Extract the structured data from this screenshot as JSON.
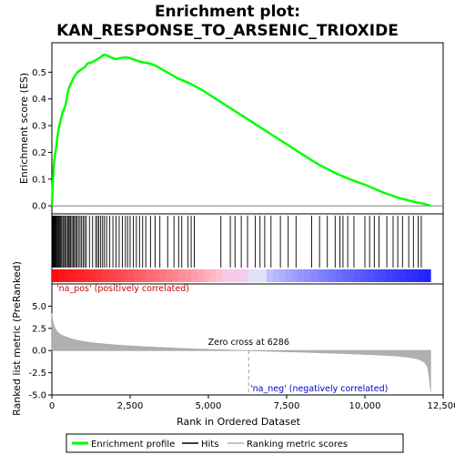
{
  "title_line1": "Enrichment plot:",
  "title_line2": "KAN_RESPONSE_TO_ARSENIC_TRIOXIDE",
  "chart_data": {
    "type": "line",
    "x_label": "Rank in Ordered Dataset",
    "x_range": [
      0,
      12500
    ],
    "x_ticks": [
      0,
      2500,
      5000,
      7500,
      10000,
      12500
    ],
    "x_tick_labels": [
      "0",
      "2,500",
      "5,000",
      "7,500",
      "10,000",
      "12,500"
    ],
    "n_genes": 12100,
    "top_panel": {
      "ylabel": "Enrichment score (ES)",
      "ylim": [
        -0.03,
        0.61
      ],
      "y_ticks": [
        0.0,
        0.1,
        0.2,
        0.3,
        0.4,
        0.5
      ],
      "y_tick_labels": [
        "0.0",
        "0.1",
        "0.2",
        "0.3",
        "0.4",
        "0.5"
      ],
      "series": [
        {
          "name": "Enrichment profile",
          "color": "#00ff00",
          "x": [
            0,
            30,
            60,
            100,
            140,
            180,
            220,
            260,
            300,
            340,
            380,
            420,
            460,
            500,
            540,
            580,
            620,
            660,
            700,
            760,
            820,
            880,
            940,
            1000,
            1060,
            1120,
            1180,
            1250,
            1320,
            1400,
            1470,
            1540,
            1600,
            1660,
            1720,
            1800,
            1900,
            2000,
            2100,
            2200,
            2300,
            2400,
            2500,
            2600,
            2700,
            2800,
            2900,
            3000,
            3100,
            3200,
            3300,
            3450,
            3600,
            3750,
            3900,
            4000,
            4100,
            4200,
            4300,
            4400,
            4500,
            4600,
            4800,
            5000,
            5200,
            5400,
            5600,
            5800,
            6000,
            6200,
            6400,
            6600,
            6800,
            7000,
            7200,
            7400,
            7600,
            7800,
            8000,
            8200,
            8400,
            8600,
            8800,
            9000,
            9200,
            9400,
            9600,
            9800,
            10000,
            10100,
            10200,
            10300,
            10400,
            10500,
            10600,
            10700,
            10800,
            10900,
            11000,
            11100,
            11200,
            11300,
            11400,
            11500,
            11600,
            11700,
            11800,
            11900,
            12000,
            12100
          ],
          "y": [
            0.0,
            0.08,
            0.15,
            0.19,
            0.22,
            0.26,
            0.29,
            0.31,
            0.33,
            0.35,
            0.36,
            0.37,
            0.39,
            0.42,
            0.44,
            0.45,
            0.46,
            0.47,
            0.48,
            0.49,
            0.5,
            0.505,
            0.51,
            0.515,
            0.52,
            0.53,
            0.535,
            0.535,
            0.54,
            0.545,
            0.55,
            0.555,
            0.56,
            0.565,
            0.565,
            0.56,
            0.555,
            0.55,
            0.55,
            0.553,
            0.555,
            0.555,
            0.552,
            0.548,
            0.544,
            0.54,
            0.537,
            0.535,
            0.533,
            0.53,
            0.525,
            0.515,
            0.505,
            0.495,
            0.485,
            0.478,
            0.473,
            0.468,
            0.463,
            0.458,
            0.452,
            0.446,
            0.433,
            0.418,
            0.403,
            0.388,
            0.373,
            0.358,
            0.343,
            0.328,
            0.313,
            0.298,
            0.283,
            0.268,
            0.253,
            0.238,
            0.223,
            0.208,
            0.193,
            0.178,
            0.163,
            0.15,
            0.138,
            0.126,
            0.115,
            0.105,
            0.096,
            0.087,
            0.079,
            0.074,
            0.069,
            0.064,
            0.059,
            0.054,
            0.049,
            0.045,
            0.041,
            0.037,
            0.033,
            0.029,
            0.026,
            0.023,
            0.02,
            0.017,
            0.014,
            0.012,
            0.01,
            0.007,
            0.004,
            0.0
          ]
        }
      ]
    },
    "hits_panel": {
      "hit_positions": [
        5,
        15,
        30,
        45,
        70,
        90,
        110,
        130,
        160,
        190,
        220,
        250,
        280,
        310,
        350,
        380,
        420,
        460,
        500,
        530,
        560,
        600,
        640,
        680,
        720,
        760,
        800,
        850,
        900,
        950,
        1000,
        1050,
        1100,
        1200,
        1300,
        1400,
        1450,
        1500,
        1560,
        1620,
        1680,
        1750,
        1850,
        1950,
        2050,
        2150,
        2250,
        2350,
        2420,
        2500,
        2600,
        2700,
        2800,
        2900,
        3000,
        3150,
        3300,
        3450,
        3700,
        3900,
        4050,
        4150,
        4350,
        4450,
        4550,
        5400,
        5700,
        5850,
        6050,
        6250,
        6500,
        6650,
        6800,
        7000,
        7300,
        7550,
        7800,
        8300,
        8550,
        8800,
        9050,
        9200,
        9300,
        9450,
        9650,
        10000,
        10150,
        10300,
        10450,
        10700,
        10900,
        11050,
        11200,
        11400,
        11550,
        11700,
        11800
      ],
      "rank_bar_color_positive": "#ff0000",
      "rank_bar_color_negative": "#0000ff"
    },
    "bottom_panel": {
      "ylabel": "Ranked list metric (PreRanked)",
      "ylim": [
        -5.0,
        7.5
      ],
      "y_ticks": [
        -5.0,
        -2.5,
        0.0,
        2.5,
        5.0
      ],
      "y_tick_labels": [
        "-5.0",
        "-2.5",
        "0.0",
        "2.5",
        "5.0"
      ],
      "series": [
        {
          "name": "Ranking metric scores",
          "color": "#b0b0b0",
          "x": [
            0,
            20,
            50,
            100,
            200,
            300,
            500,
            800,
            1200,
            1700,
            2300,
            3000,
            4000,
            5000,
            6000,
            6286,
            7000,
            8000,
            9000,
            10000,
            10500,
            11000,
            11400,
            11700,
            11900,
            12000,
            12050,
            12100
          ],
          "y": [
            4.2,
            3.5,
            3.0,
            2.5,
            2.0,
            1.75,
            1.45,
            1.15,
            0.9,
            0.72,
            0.55,
            0.42,
            0.25,
            0.12,
            0.02,
            0.0,
            -0.08,
            -0.18,
            -0.3,
            -0.42,
            -0.5,
            -0.6,
            -0.75,
            -0.95,
            -1.3,
            -1.8,
            -2.8,
            -4.6
          ]
        }
      ],
      "zero_cross_rank": 6286,
      "zero_cross_label": "Zero cross at 6286",
      "pos_label": "'na_pos' (positively correlated)",
      "neg_label": "'na_neg' (negatively correlated)",
      "pos_color": "#cc0000",
      "neg_color": "#0000cc"
    },
    "legend": {
      "placement": "bottom",
      "entries": [
        {
          "label": "Enrichment profile",
          "color": "#00ff00"
        },
        {
          "label": "Hits",
          "color": "#000000"
        },
        {
          "label": "Ranking metric scores",
          "color": "#b0b0b0"
        }
      ]
    }
  }
}
